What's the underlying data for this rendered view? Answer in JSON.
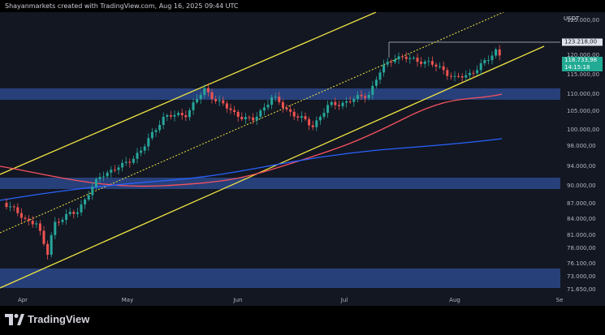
{
  "header": {
    "text": "Shayanmarkets created with TradingView.com, Aug 16, 2025 09:44 UTC"
  },
  "currency": "USDT",
  "price_axis": {
    "labels": [
      "125.000,00",
      "120.000,00",
      "115.000,00",
      "110.000,00",
      "105.000,00",
      "100.000,00",
      "98.000,00",
      "94.000,00",
      "90.000,00",
      "87.000,00",
      "84.000,00",
      "81.000,00",
      "78.000,00",
      "76.100,00",
      "73.000,00",
      "71.650,00"
    ],
    "high_tag": "123.218,00",
    "price_tag": "118.733,98",
    "countdown": "14:15:18"
  },
  "time_axis": {
    "labels": [
      "Apr",
      "May",
      "Jun",
      "Jul",
      "Aug",
      "Se"
    ]
  },
  "brand": {
    "name": "TradingView"
  },
  "colors": {
    "bg": "#131722",
    "up": "#26a69a",
    "down": "#ef5350",
    "channel": "#f0e442",
    "zone": "#27407a",
    "ma_blue": "#2962ff",
    "ma_red": "#f7525f"
  }
}
